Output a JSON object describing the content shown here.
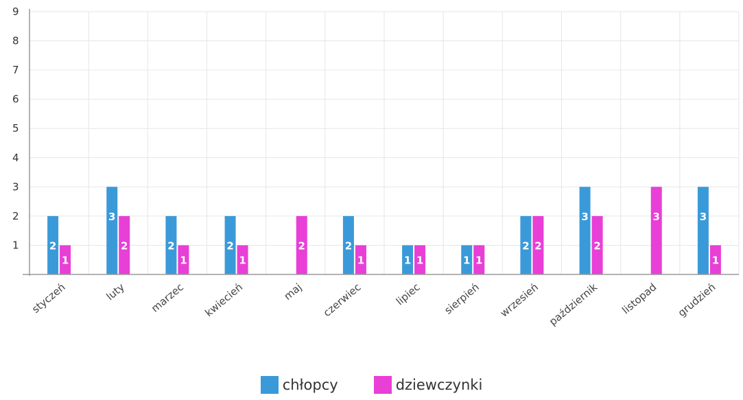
{
  "chart_data": {
    "type": "bar",
    "categories": [
      "styczeń",
      "luty",
      "marzec",
      "kwiecień",
      "maj",
      "czerwiec",
      "lipiec",
      "sierpień",
      "wrzesień",
      "październik",
      "listopad",
      "grudzień"
    ],
    "series": [
      {
        "name": "chłopcy",
        "color": "#3a9ad9",
        "values": [
          2,
          3,
          2,
          2,
          0,
          2,
          1,
          1,
          2,
          3,
          0,
          3
        ]
      },
      {
        "name": "dziewczynki",
        "color": "#e83fd6",
        "values": [
          1,
          2,
          1,
          1,
          2,
          1,
          1,
          1,
          2,
          2,
          3,
          1
        ]
      }
    ],
    "title": "",
    "xlabel": "",
    "ylabel": "",
    "ylim": [
      0,
      9
    ],
    "yticks": [
      1,
      2,
      3,
      4,
      5,
      6,
      7,
      8,
      9
    ],
    "grid": true,
    "legend_position": "bottom-center",
    "data_labels": true
  }
}
